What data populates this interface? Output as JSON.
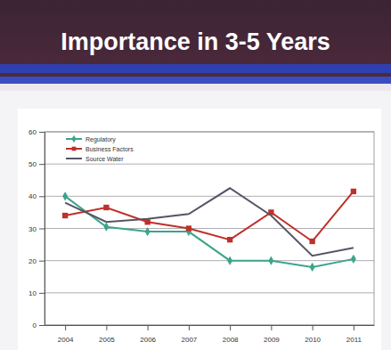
{
  "chart_data": {
    "type": "line",
    "title": "Importance in 3-5 Years",
    "categories": [
      "2004",
      "2005",
      "2006",
      "2007",
      "2008",
      "2009",
      "2010",
      "2011"
    ],
    "series": [
      {
        "name": "Regulatory",
        "color": "#3aa58a",
        "marker": "diamond",
        "values": [
          40,
          30.5,
          29,
          29,
          20,
          20,
          18,
          20.5
        ]
      },
      {
        "name": "Business Factors",
        "color": "#c0302a",
        "marker": "square",
        "values": [
          34,
          36.5,
          32,
          30,
          26.5,
          35,
          26,
          41.5
        ]
      },
      {
        "name": "Source Water",
        "color": "#555566",
        "marker": "none",
        "values": [
          38,
          32,
          33,
          34.5,
          42.5,
          34,
          21.5,
          24
        ]
      }
    ],
    "ylim": [
      0,
      60
    ],
    "yticks": [
      0,
      10,
      20,
      30,
      40,
      50,
      60
    ],
    "grid": true,
    "legend": "top-left"
  }
}
